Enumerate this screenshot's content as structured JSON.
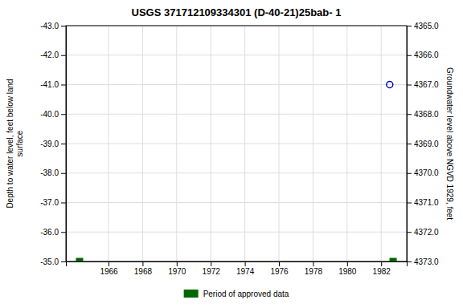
{
  "chart_data": {
    "type": "scatter",
    "title": "USGS 371712109334301  (D-40-21)25bab- 1",
    "ylabel": "Depth to water level, feet below land\nsurface",
    "y2label": "Groundwater level above NGVD 1929, feet",
    "xlim": [
      1963.5,
      1983.5
    ],
    "xticks": [
      1966,
      1968,
      1970,
      1972,
      1974,
      1976,
      1978,
      1980,
      1982
    ],
    "ylim": [
      -35.0,
      -43.0
    ],
    "yticks": [
      {
        "value": -43.0,
        "label": "-43.0"
      },
      {
        "value": -42.0,
        "label": "-42.0"
      },
      {
        "value": -41.0,
        "label": "-41.0"
      },
      {
        "value": -40.0,
        "label": "-40.0"
      },
      {
        "value": -39.0,
        "label": "-39.0"
      },
      {
        "value": -38.0,
        "label": "-38.0"
      },
      {
        "value": -37.0,
        "label": "-37.0"
      },
      {
        "value": -36.0,
        "label": "-36.0"
      },
      {
        "value": -35.0,
        "label": "-35.0"
      }
    ],
    "y2lim": [
      4373.0,
      4365.0
    ],
    "y2ticks": [
      {
        "value": 4365.0,
        "label": "4365.0"
      },
      {
        "value": 4366.0,
        "label": "4366.0"
      },
      {
        "value": 4367.0,
        "label": "4367.0"
      },
      {
        "value": 4368.0,
        "label": "4368.0"
      },
      {
        "value": 4369.0,
        "label": "4369.0"
      },
      {
        "value": 4370.0,
        "label": "4370.0"
      },
      {
        "value": 4371.0,
        "label": "4371.0"
      },
      {
        "value": 4372.0,
        "label": "4372.0"
      },
      {
        "value": 4373.0,
        "label": "4373.0"
      }
    ],
    "grid": true,
    "legend": "bottom",
    "series": [
      {
        "color": "#0000cc",
        "marker": "circle-open",
        "x": [
          1982.5
        ],
        "values": [
          -41.0
        ]
      },
      {
        "name": "Period of approved data",
        "color": "#006600",
        "marker": "square",
        "x": [
          1964.3,
          1982.7
        ],
        "values": [
          -35.0,
          -35.0
        ]
      }
    ]
  }
}
